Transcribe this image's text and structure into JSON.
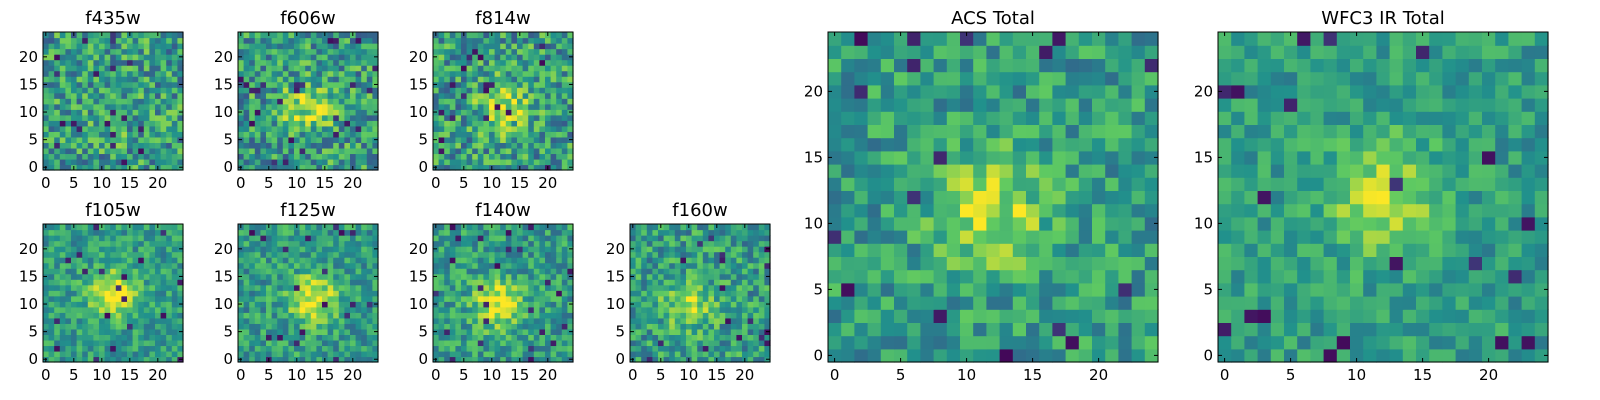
{
  "figure": {
    "description_note": "Grid of 2D heatmap postage stamps (viridis colormap), 25x25 pixels each",
    "colormap": [
      "#440154",
      "#3b528b",
      "#21918c",
      "#5ec962",
      "#fde725"
    ]
  },
  "chart_data": [
    {
      "type": "heatmap",
      "title": "f435w",
      "xticks": [
        "0",
        "5",
        "10",
        "15",
        "20"
      ],
      "yticks": [
        "0",
        "5",
        "10",
        "15",
        "20"
      ],
      "xlim": [
        -0.5,
        24.5
      ],
      "ylim": [
        -0.5,
        24.5
      ],
      "grid_size": [
        25,
        25
      ],
      "seed": 11,
      "bright_center": [
        13,
        8
      ],
      "bright_amp": 0.05,
      "noise": 0.55
    },
    {
      "type": "heatmap",
      "title": "f606w",
      "xticks": [
        "0",
        "5",
        "10",
        "15",
        "20"
      ],
      "yticks": [
        "0",
        "5",
        "10",
        "15",
        "20"
      ],
      "xlim": [
        -0.5,
        24.5
      ],
      "ylim": [
        -0.5,
        24.5
      ],
      "grid_size": [
        25,
        25
      ],
      "seed": 23,
      "bright_center": [
        12,
        11
      ],
      "bright_amp": 0.35,
      "noise": 0.55
    },
    {
      "type": "heatmap",
      "title": "f814w",
      "xticks": [
        "0",
        "5",
        "10",
        "15",
        "20"
      ],
      "yticks": [
        "0",
        "5",
        "10",
        "15",
        "20"
      ],
      "xlim": [
        -0.5,
        24.5
      ],
      "ylim": [
        -0.5,
        24.5
      ],
      "grid_size": [
        25,
        25
      ],
      "seed": 37,
      "bright_center": [
        12,
        11
      ],
      "bright_amp": 0.35,
      "noise": 0.55
    },
    {
      "type": "heatmap",
      "title": "f105w",
      "xticks": [
        "0",
        "5",
        "10",
        "15",
        "20"
      ],
      "yticks": [
        "0",
        "5",
        "10",
        "15",
        "20"
      ],
      "xlim": [
        -0.5,
        24.5
      ],
      "ylim": [
        -0.5,
        24.5
      ],
      "grid_size": [
        25,
        25
      ],
      "seed": 41,
      "bright_center": [
        12,
        12
      ],
      "bright_amp": 0.45,
      "noise": 0.35
    },
    {
      "type": "heatmap",
      "title": "f125w",
      "xticks": [
        "0",
        "5",
        "10",
        "15",
        "20"
      ],
      "yticks": [
        "0",
        "5",
        "10",
        "15",
        "20"
      ],
      "xlim": [
        -0.5,
        24.5
      ],
      "ylim": [
        -0.5,
        24.5
      ],
      "grid_size": [
        25,
        25
      ],
      "seed": 53,
      "bright_center": [
        13,
        11
      ],
      "bright_amp": 0.45,
      "noise": 0.4
    },
    {
      "type": "heatmap",
      "title": "f140w",
      "xticks": [
        "0",
        "5",
        "10",
        "15",
        "20"
      ],
      "yticks": [
        "0",
        "5",
        "10",
        "15",
        "20"
      ],
      "xlim": [
        -0.5,
        24.5
      ],
      "ylim": [
        -0.5,
        24.5
      ],
      "grid_size": [
        25,
        25
      ],
      "seed": 67,
      "bright_center": [
        11,
        10
      ],
      "bright_amp": 0.45,
      "noise": 0.4
    },
    {
      "type": "heatmap",
      "title": "f160w",
      "xticks": [
        "0",
        "5",
        "10",
        "15",
        "20"
      ],
      "yticks": [
        "0",
        "5",
        "10",
        "15",
        "20"
      ],
      "xlim": [
        -0.5,
        24.5
      ],
      "ylim": [
        -0.5,
        24.5
      ],
      "grid_size": [
        25,
        25
      ],
      "seed": 79,
      "bright_center": [
        10,
        10
      ],
      "bright_amp": 0.35,
      "noise": 0.45
    },
    {
      "type": "heatmap",
      "title": "ACS Total",
      "xticks": [
        "0",
        "5",
        "10",
        "15",
        "20"
      ],
      "yticks": [
        "0",
        "5",
        "10",
        "15",
        "20"
      ],
      "xlim": [
        -0.5,
        24.5
      ],
      "ylim": [
        -0.5,
        24.5
      ],
      "grid_size": [
        25,
        25
      ],
      "seed": 97,
      "bright_center": [
        12,
        11
      ],
      "bright_amp": 0.35,
      "noise": 0.4
    },
    {
      "type": "heatmap",
      "title": "WFC3 IR Total",
      "xticks": [
        "0",
        "5",
        "10",
        "15",
        "20"
      ],
      "yticks": [
        "0",
        "5",
        "10",
        "15",
        "20"
      ],
      "xlim": [
        -0.5,
        24.5
      ],
      "ylim": [
        -0.5,
        24.5
      ],
      "grid_size": [
        25,
        25
      ],
      "seed": 113,
      "bright_center": [
        12,
        12
      ],
      "bright_amp": 0.35,
      "noise": 0.3
    }
  ]
}
